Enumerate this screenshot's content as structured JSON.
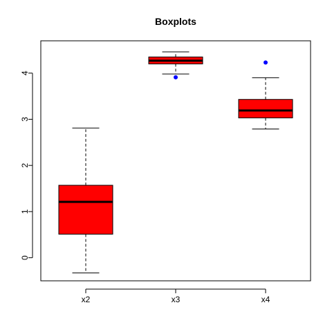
{
  "chart_data": {
    "type": "boxplot",
    "title": "Boxplots",
    "xlabel": "",
    "ylabel": "",
    "categories": [
      "x2",
      "x3",
      "x4"
    ],
    "ylim": [
      -0.5,
      4.7
    ],
    "yticks": [
      0,
      1,
      2,
      3,
      4
    ],
    "grid": false,
    "box_color": "#ff0000",
    "outlier_color": "#0000ff",
    "boxes": [
      {
        "name": "x2",
        "whisker_low": -0.33,
        "q1": 0.51,
        "median": 1.21,
        "q3": 1.57,
        "whisker_high": 2.81,
        "outliers": []
      },
      {
        "name": "x3",
        "whisker_low": 3.98,
        "q1": 4.2,
        "median": 4.27,
        "q3": 4.35,
        "whisker_high": 4.46,
        "outliers": [
          3.91
        ]
      },
      {
        "name": "x4",
        "whisker_low": 2.79,
        "q1": 3.03,
        "median": 3.19,
        "q3": 3.43,
        "whisker_high": 3.9,
        "outliers": [
          4.23
        ]
      }
    ]
  }
}
